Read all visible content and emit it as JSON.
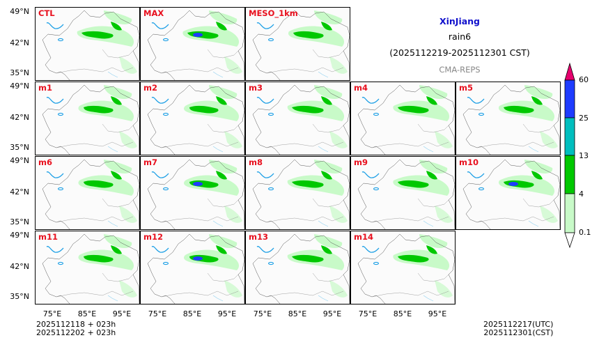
{
  "header": {
    "region": "XinJiang",
    "variable": "rain6",
    "period": "(2025112219-2025112301 CST)",
    "model": "CMA-REPS"
  },
  "panels": [
    "CTL",
    "MAX",
    "MESO_1km",
    "m1",
    "m2",
    "m3",
    "m4",
    "m5",
    "m6",
    "m7",
    "m8",
    "m9",
    "m10",
    "m11",
    "m12",
    "m13",
    "m14"
  ],
  "lat_labels": [
    "49°N",
    "42°N",
    "35°N"
  ],
  "lon_labels": [
    "75°E",
    "85°E",
    "95°E"
  ],
  "colorbar": {
    "levels": [
      "0.1",
      "4",
      "13",
      "25",
      "60"
    ],
    "colors": [
      "#c8fac8",
      "#00c800",
      "#00bebe",
      "#1e3cff",
      "#e6006e"
    ]
  },
  "footer": {
    "init_line1": "2025112118  +  023h",
    "init_line2": "2025112202  +  023h",
    "valid_utc": "2025112217(UTC)",
    "valid_cst": "2025112301(CST)"
  }
}
